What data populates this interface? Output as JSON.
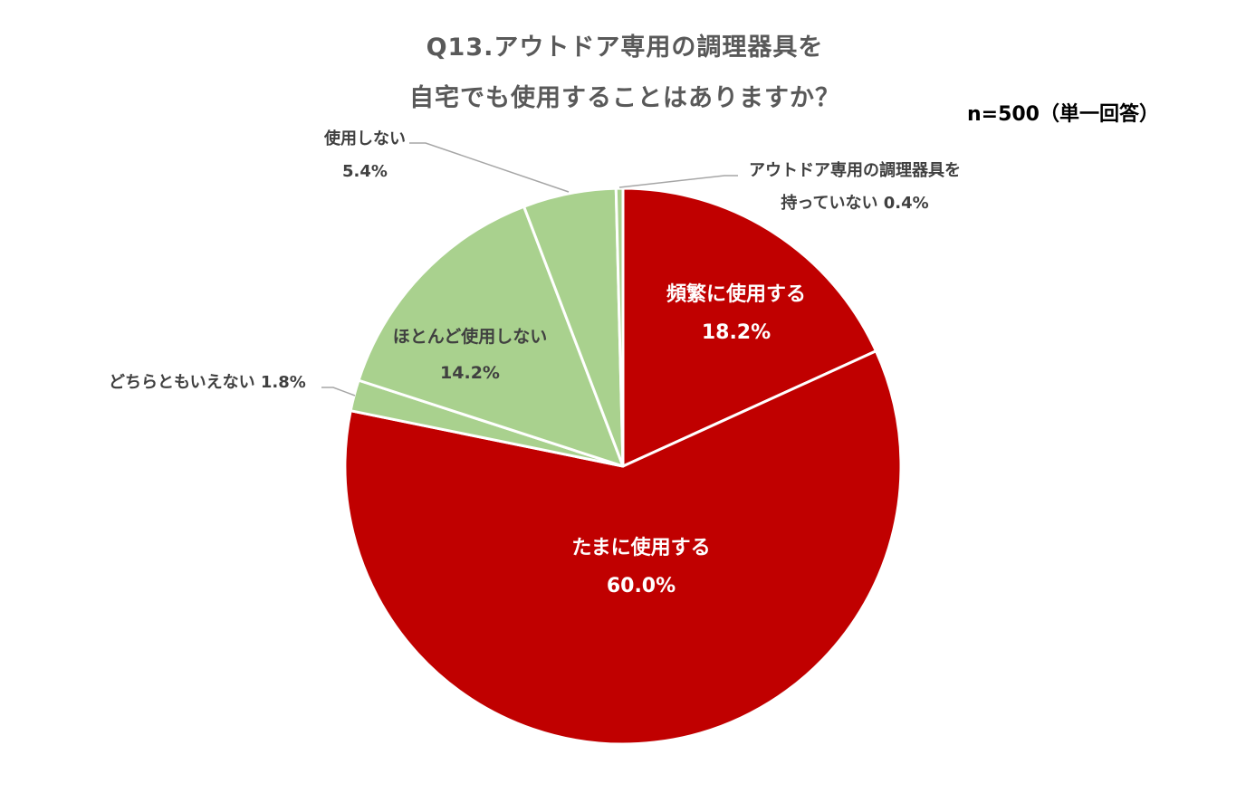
{
  "title": {
    "line1": "Q13.アウトドア専用の調理器具を",
    "line2": "自宅でも使用することはありますか？"
  },
  "sample_note": "n=500（単一回答）",
  "colors": {
    "red": "#c00000",
    "green": "#a9d18e",
    "stroke": "#ffffff",
    "leader": "#a6a6a6"
  },
  "chart_data": {
    "type": "pie",
    "title": "Q13.アウトドア専用の調理器具を自宅でも使用することはありますか？",
    "start_angle_deg": 0,
    "direction": "clockwise",
    "slices": [
      {
        "label": "頻繁に使用する",
        "value": 18.2,
        "display": "18.2%",
        "color": "#c00000"
      },
      {
        "label": "たまに使用する",
        "value": 60.0,
        "display": "60.0%",
        "color": "#c00000"
      },
      {
        "label": "どちらともいえない",
        "value": 1.8,
        "display": "1.8%",
        "color": "#a9d18e"
      },
      {
        "label": "ほとんど使用しない",
        "value": 14.2,
        "display": "14.2%",
        "color": "#a9d18e"
      },
      {
        "label": "使用しない",
        "value": 5.4,
        "display": "5.4%",
        "color": "#a9d18e"
      },
      {
        "label": "アウトドア専用の調理器具を持っていない",
        "value": 0.4,
        "display": "0.4%",
        "color": "#a9d18e"
      }
    ],
    "labels": {
      "freq_name": "頻繁に使用する",
      "freq_pct": "18.2%",
      "sometimes_name": "たまに使用する",
      "sometimes_pct": "60.0%",
      "neutral_line": "どちらともいえない 1.8%",
      "rarely_name": "ほとんど使用しない",
      "rarely_pct": "14.2%",
      "never_name": "使用しない",
      "never_pct": "5.4%",
      "noequip_line1": "アウトドア専用の調理器具を",
      "noequip_line2": "持っていない 0.4%"
    }
  }
}
